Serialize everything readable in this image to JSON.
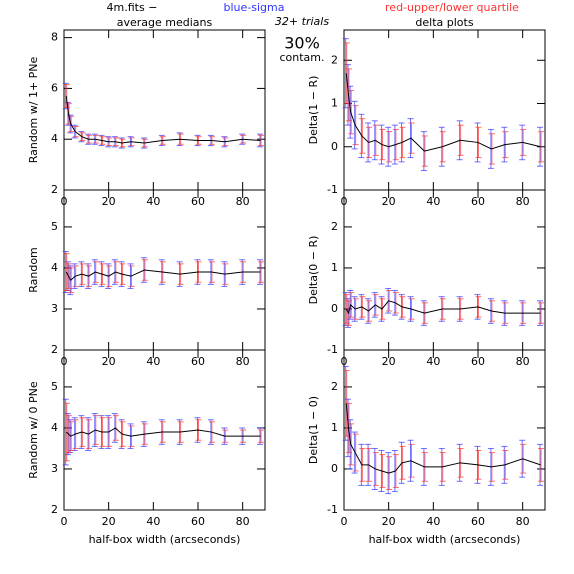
{
  "legend": [
    "4m.fits  −",
    "blue-sigma",
    "red-upper/lower quartile"
  ],
  "legend_colors": [
    "#000000",
    "#3333ff",
    "#ff3333"
  ],
  "trials": "32+ trials",
  "contamination": "30%",
  "contamination_label": "contam.",
  "chart_data": [
    {
      "type": "line",
      "title": "average medians",
      "ylabel": "Random w/ 1+ PNe",
      "x": [
        1,
        2,
        3,
        5,
        8,
        11,
        14,
        17,
        20,
        23,
        26,
        30,
        36,
        44,
        52,
        60,
        66,
        72,
        80,
        88
      ],
      "values": [
        5.7,
        5.0,
        4.6,
        4.3,
        4.1,
        4.0,
        4.0,
        3.95,
        3.9,
        3.9,
        3.85,
        3.9,
        3.85,
        3.95,
        4.0,
        3.95,
        3.95,
        3.9,
        4.0,
        3.95
      ],
      "sigma": [
        0.5,
        0.45,
        0.35,
        0.25,
        0.2,
        0.2,
        0.2,
        0.2,
        0.2,
        0.2,
        0.2,
        0.2,
        0.2,
        0.2,
        0.25,
        0.2,
        0.2,
        0.2,
        0.2,
        0.25
      ],
      "quartile": [
        0.45,
        0.4,
        0.3,
        0.2,
        0.15,
        0.15,
        0.15,
        0.15,
        0.15,
        0.15,
        0.15,
        0.15,
        0.15,
        0.15,
        0.2,
        0.15,
        0.15,
        0.15,
        0.15,
        0.2
      ],
      "xlim": [
        0,
        90
      ],
      "ylim": [
        2,
        8.3
      ],
      "xticks": [
        0,
        20,
        40,
        60,
        80
      ],
      "yticks": [
        2,
        4,
        6,
        8
      ]
    },
    {
      "type": "line",
      "ylabel": "Random",
      "x": [
        1,
        2,
        3,
        5,
        8,
        11,
        14,
        17,
        20,
        23,
        26,
        30,
        36,
        44,
        52,
        60,
        66,
        72,
        80,
        88
      ],
      "values": [
        3.9,
        3.8,
        3.7,
        3.8,
        3.85,
        3.8,
        3.9,
        3.85,
        3.8,
        3.9,
        3.85,
        3.8,
        3.95,
        3.9,
        3.85,
        3.9,
        3.9,
        3.85,
        3.9,
        3.9
      ],
      "sigma": [
        0.5,
        0.35,
        0.35,
        0.3,
        0.3,
        0.3,
        0.3,
        0.3,
        0.3,
        0.3,
        0.3,
        0.3,
        0.3,
        0.3,
        0.3,
        0.3,
        0.3,
        0.3,
        0.3,
        0.3
      ],
      "quartile": [
        0.45,
        0.3,
        0.3,
        0.25,
        0.25,
        0.25,
        0.25,
        0.25,
        0.25,
        0.25,
        0.25,
        0.25,
        0.25,
        0.25,
        0.25,
        0.25,
        0.25,
        0.25,
        0.25,
        0.25
      ],
      "xlim": [
        0,
        90
      ],
      "ylim": [
        2,
        5.9
      ],
      "xticks": [
        0,
        20,
        40,
        60,
        80
      ],
      "yticks": [
        2,
        3,
        4,
        5
      ]
    },
    {
      "type": "line",
      "ylabel": "Random w/ 0 PNe",
      "xlabel": "half-box width (arcseconds)",
      "x": [
        1,
        2,
        3,
        5,
        8,
        11,
        14,
        17,
        20,
        23,
        26,
        30,
        36,
        44,
        52,
        60,
        66,
        72,
        80,
        88
      ],
      "values": [
        3.9,
        3.85,
        3.8,
        3.85,
        3.9,
        3.85,
        3.95,
        3.9,
        3.9,
        4.0,
        3.85,
        3.8,
        3.85,
        3.9,
        3.9,
        3.95,
        3.9,
        3.8,
        3.8,
        3.8
      ],
      "sigma": [
        0.8,
        0.5,
        0.4,
        0.4,
        0.4,
        0.4,
        0.4,
        0.4,
        0.4,
        0.35,
        0.35,
        0.3,
        0.3,
        0.3,
        0.3,
        0.3,
        0.3,
        0.2,
        0.2,
        0.2
      ],
      "quartile": [
        0.7,
        0.45,
        0.35,
        0.35,
        0.35,
        0.35,
        0.35,
        0.35,
        0.35,
        0.3,
        0.3,
        0.25,
        0.25,
        0.25,
        0.25,
        0.25,
        0.25,
        0.15,
        0.15,
        0.15
      ],
      "xlim": [
        0,
        90
      ],
      "ylim": [
        2,
        5.9
      ],
      "xticks": [
        0,
        20,
        40,
        60,
        80
      ],
      "yticks": [
        2,
        3,
        4,
        5
      ]
    },
    {
      "type": "line",
      "title": "delta plots",
      "ylabel": "Delta(1 − R)",
      "x": [
        1,
        2,
        3,
        5,
        8,
        11,
        14,
        17,
        20,
        23,
        26,
        30,
        36,
        44,
        52,
        60,
        66,
        72,
        80,
        88
      ],
      "values": [
        1.7,
        1.2,
        0.8,
        0.5,
        0.25,
        0.1,
        0.15,
        0.05,
        0.0,
        0.05,
        0.1,
        0.2,
        -0.1,
        0.0,
        0.15,
        0.1,
        -0.05,
        0.05,
        0.1,
        0.0
      ],
      "sigma": [
        0.8,
        0.7,
        0.6,
        0.55,
        0.5,
        0.45,
        0.45,
        0.45,
        0.45,
        0.45,
        0.45,
        0.45,
        0.45,
        0.45,
        0.45,
        0.45,
        0.45,
        0.4,
        0.4,
        0.45
      ],
      "quartile": [
        0.7,
        0.6,
        0.5,
        0.45,
        0.4,
        0.35,
        0.35,
        0.35,
        0.35,
        0.35,
        0.35,
        0.35,
        0.35,
        0.35,
        0.35,
        0.35,
        0.35,
        0.3,
        0.3,
        0.35
      ],
      "xlim": [
        0,
        90
      ],
      "ylim": [
        -1,
        2.7
      ],
      "xticks": [
        0,
        20,
        40,
        60,
        80
      ],
      "yticks": [
        -1,
        0,
        1,
        2
      ]
    },
    {
      "type": "line",
      "ylabel": "Delta(0 − R)",
      "x": [
        1,
        2,
        3,
        5,
        8,
        11,
        14,
        17,
        20,
        23,
        26,
        30,
        36,
        44,
        52,
        60,
        66,
        72,
        80,
        88
      ],
      "values": [
        0.0,
        -0.1,
        0.1,
        0.0,
        0.05,
        -0.05,
        0.1,
        0.0,
        0.2,
        0.15,
        0.05,
        0.0,
        -0.1,
        0.0,
        0.0,
        0.05,
        -0.05,
        -0.1,
        -0.1,
        -0.1
      ],
      "sigma": [
        0.4,
        0.35,
        0.35,
        0.3,
        0.3,
        0.3,
        0.3,
        0.3,
        0.3,
        0.3,
        0.3,
        0.3,
        0.3,
        0.3,
        0.3,
        0.3,
        0.3,
        0.3,
        0.3,
        0.3
      ],
      "quartile": [
        0.35,
        0.3,
        0.3,
        0.25,
        0.25,
        0.25,
        0.25,
        0.25,
        0.25,
        0.25,
        0.25,
        0.25,
        0.25,
        0.25,
        0.25,
        0.25,
        0.25,
        0.25,
        0.25,
        0.25
      ],
      "xlim": [
        0,
        90
      ],
      "ylim": [
        -1,
        2.9
      ],
      "xticks": [
        0,
        20,
        40,
        60,
        80
      ],
      "yticks": [
        -1,
        0,
        1,
        2
      ]
    },
    {
      "type": "line",
      "ylabel": "Delta(1 − 0)",
      "xlabel": "half-box width (arcseconds)",
      "x": [
        1,
        2,
        3,
        5,
        8,
        11,
        14,
        17,
        20,
        23,
        26,
        30,
        36,
        44,
        52,
        60,
        66,
        72,
        80,
        88
      ],
      "values": [
        1.6,
        1.0,
        0.6,
        0.4,
        0.1,
        0.1,
        0.0,
        -0.05,
        -0.1,
        -0.05,
        0.15,
        0.2,
        0.05,
        0.05,
        0.15,
        0.1,
        0.05,
        0.1,
        0.25,
        0.1
      ],
      "sigma": [
        0.9,
        0.7,
        0.6,
        0.5,
        0.5,
        0.5,
        0.5,
        0.5,
        0.5,
        0.5,
        0.5,
        0.5,
        0.45,
        0.45,
        0.45,
        0.45,
        0.45,
        0.45,
        0.45,
        0.5
      ],
      "quartile": [
        0.8,
        0.6,
        0.5,
        0.45,
        0.4,
        0.4,
        0.4,
        0.4,
        0.4,
        0.4,
        0.4,
        0.4,
        0.35,
        0.35,
        0.35,
        0.35,
        0.35,
        0.35,
        0.35,
        0.4
      ],
      "xlim": [
        0,
        90
      ],
      "ylim": [
        -1,
        2.9
      ],
      "xticks": [
        0,
        20,
        40,
        60,
        80
      ],
      "yticks": [
        -1,
        0,
        1,
        2
      ]
    }
  ]
}
